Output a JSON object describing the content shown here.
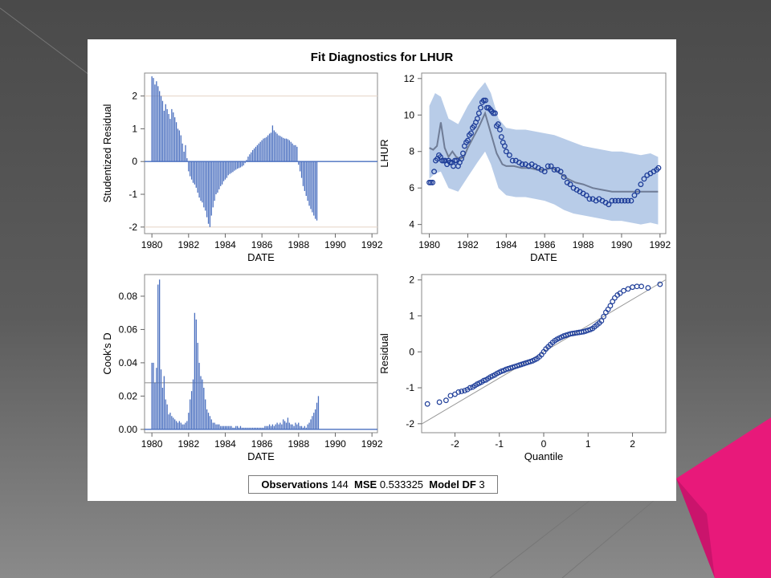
{
  "colors": {
    "bar": "#4a6fbf",
    "marker": "#1f3e99",
    "band": "#b8cce8",
    "predicted": "#6f7c96",
    "refline": "#e8d8cc",
    "slide_accent": "#e8197a"
  },
  "title": "Fit Diagnostics for LHUR",
  "footer": {
    "obs_label": "Observations",
    "obs_value": "144",
    "mse_label": "MSE",
    "mse_value": "0.533325",
    "df_label": "Model DF",
    "df_value": "3"
  },
  "chart_data": [
    {
      "id": "studentized-residual",
      "type": "bar",
      "xlabel": "DATE",
      "ylabel": "Studentized Residual",
      "xticks": [
        "1980",
        "1982",
        "1984",
        "1986",
        "1988",
        "1990",
        "1992"
      ],
      "yticks": [
        "-2",
        "-1",
        "0",
        "1",
        "2"
      ],
      "xlim": [
        1979.6,
        1992.3
      ],
      "ylim": [
        -2.2,
        2.7
      ],
      "reference_lines": [
        -2,
        2
      ],
      "x_start": 1980.0,
      "x_step": 0.0833,
      "values": [
        2.6,
        2.55,
        2.35,
        2.45,
        2.3,
        2.15,
        2.0,
        1.85,
        1.55,
        1.75,
        1.6,
        1.45,
        1.3,
        1.6,
        1.5,
        1.35,
        1.2,
        1.0,
        0.95,
        0.8,
        0.55,
        0.3,
        0.5,
        0.1,
        -0.3,
        -0.45,
        -0.55,
        -0.65,
        -0.7,
        -0.8,
        -0.95,
        -1.1,
        -1.2,
        -1.25,
        -1.4,
        -1.5,
        -1.7,
        -1.9,
        -2.0,
        -1.65,
        -1.4,
        -1.2,
        -1.0,
        -0.95,
        -0.85,
        -0.75,
        -0.7,
        -0.6,
        -0.55,
        -0.5,
        -0.42,
        -0.38,
        -0.35,
        -0.32,
        -0.28,
        -0.25,
        -0.22,
        -0.2,
        -0.18,
        -0.15,
        -0.12,
        -0.05,
        0.05,
        0.15,
        0.22,
        0.28,
        0.35,
        0.4,
        0.45,
        0.5,
        0.55,
        0.6,
        0.65,
        0.7,
        0.72,
        0.75,
        0.8,
        0.85,
        0.88,
        1.1,
        0.95,
        0.9,
        0.85,
        0.8,
        0.78,
        0.75,
        0.72,
        0.7,
        0.7,
        0.68,
        0.65,
        0.6,
        0.55,
        0.5,
        0.5,
        0.45,
        -0.1,
        -0.3,
        -0.5,
        -0.75,
        -0.9,
        -1.05,
        -1.2,
        -1.35,
        -1.45,
        -1.55,
        -1.65,
        -1.75,
        -1.8
      ]
    },
    {
      "id": "lhur-fit",
      "type": "line",
      "xlabel": "DATE",
      "ylabel": "LHUR",
      "xticks": [
        "1980",
        "1982",
        "1984",
        "1986",
        "1988",
        "1990",
        "1992"
      ],
      "yticks": [
        "4",
        "6",
        "8",
        "10",
        "12"
      ],
      "xlim": [
        1979.6,
        1992.3
      ],
      "ylim": [
        3.5,
        12.3
      ],
      "series": [
        {
          "role": "band_upper",
          "x": [
            1980.0,
            1980.3,
            1980.6,
            1981.0,
            1981.5,
            1982.0,
            1982.5,
            1982.9,
            1983.2,
            1983.6,
            1984.0,
            1984.5,
            1985.0,
            1985.5,
            1986.0,
            1986.5,
            1987.0,
            1987.5,
            1988.0,
            1988.5,
            1989.0,
            1989.5,
            1990.0,
            1990.5,
            1991.0,
            1991.5,
            1991.9
          ],
          "y": [
            10.5,
            11.2,
            11.0,
            9.8,
            9.5,
            10.5,
            11.3,
            11.8,
            11.2,
            9.8,
            9.3,
            9.2,
            9.2,
            9.1,
            9.0,
            8.9,
            8.7,
            8.5,
            8.3,
            8.2,
            8.1,
            8.0,
            8.0,
            7.9,
            7.8,
            7.9,
            7.7
          ]
        },
        {
          "role": "band_lower",
          "x": [
            1980.0,
            1980.3,
            1980.6,
            1981.0,
            1981.5,
            1982.0,
            1982.5,
            1982.9,
            1983.2,
            1983.6,
            1984.0,
            1984.5,
            1985.0,
            1985.5,
            1986.0,
            1986.5,
            1987.0,
            1987.5,
            1988.0,
            1988.5,
            1989.0,
            1989.5,
            1990.0,
            1990.5,
            1991.0,
            1991.5,
            1991.9
          ],
          "y": [
            6.5,
            6.8,
            6.9,
            6.0,
            5.8,
            6.6,
            7.4,
            8.0,
            7.3,
            6.0,
            5.6,
            5.5,
            5.5,
            5.4,
            5.3,
            5.1,
            4.8,
            4.6,
            4.5,
            4.4,
            4.3,
            4.2,
            4.2,
            4.1,
            4.0,
            4.1,
            4.0
          ]
        },
        {
          "role": "predicted",
          "x": [
            1980.0,
            1980.2,
            1980.4,
            1980.6,
            1980.8,
            1981.0,
            1981.2,
            1981.4,
            1981.6,
            1981.8,
            1982.0,
            1982.3,
            1982.6,
            1982.9,
            1983.2,
            1983.5,
            1983.8,
            1984.0,
            1984.4,
            1984.8,
            1985.2,
            1985.6,
            1986.0,
            1986.4,
            1986.8,
            1987.2,
            1987.6,
            1988.0,
            1988.5,
            1989.0,
            1989.5,
            1990.0,
            1990.5,
            1991.0,
            1991.5,
            1991.9
          ],
          "y": [
            8.2,
            8.1,
            8.3,
            9.6,
            8.2,
            7.7,
            8.0,
            7.7,
            7.6,
            7.7,
            8.2,
            8.8,
            9.4,
            10.1,
            9.0,
            7.9,
            7.3,
            7.2,
            7.2,
            7.1,
            7.1,
            7.0,
            7.0,
            7.1,
            6.8,
            6.5,
            6.3,
            6.2,
            6.0,
            5.9,
            5.8,
            5.8,
            5.8,
            5.8,
            5.8,
            5.8
          ]
        },
        {
          "role": "observed",
          "x": [
            1980.0,
            1980.08,
            1980.17,
            1980.25,
            1980.33,
            1980.42,
            1980.5,
            1980.58,
            1980.67,
            1980.75,
            1980.83,
            1980.92,
            1981.0,
            1981.08,
            1981.17,
            1981.25,
            1981.33,
            1981.42,
            1981.5,
            1981.58,
            1981.67,
            1981.75,
            1981.83,
            1981.92,
            1982.0,
            1982.08,
            1982.17,
            1982.25,
            1982.33,
            1982.42,
            1982.5,
            1982.58,
            1982.67,
            1982.75,
            1982.83,
            1982.92,
            1983.0,
            1983.08,
            1983.17,
            1983.25,
            1983.33,
            1983.42,
            1983.5,
            1983.58,
            1983.67,
            1983.75,
            1983.83,
            1983.92,
            1984.0,
            1984.17,
            1984.33,
            1984.5,
            1984.67,
            1984.83,
            1985.0,
            1985.17,
            1985.33,
            1985.5,
            1985.67,
            1985.83,
            1986.0,
            1986.17,
            1986.33,
            1986.5,
            1986.67,
            1986.83,
            1987.0,
            1987.17,
            1987.33,
            1987.5,
            1987.67,
            1987.83,
            1988.0,
            1988.17,
            1988.33,
            1988.5,
            1988.67,
            1988.83,
            1989.0,
            1989.17,
            1989.33,
            1989.5,
            1989.67,
            1989.83,
            1990.0,
            1990.17,
            1990.33,
            1990.5,
            1990.67,
            1990.83,
            1991.0,
            1991.17,
            1991.33,
            1991.5,
            1991.67,
            1991.83,
            1991.92
          ],
          "y": [
            6.3,
            6.3,
            6.3,
            6.9,
            7.5,
            7.6,
            7.8,
            7.7,
            7.5,
            7.5,
            7.5,
            7.3,
            7.5,
            7.4,
            7.4,
            7.2,
            7.5,
            7.5,
            7.2,
            7.4,
            7.6,
            7.9,
            8.3,
            8.5,
            8.6,
            8.9,
            9.0,
            9.3,
            9.4,
            9.6,
            9.8,
            10.1,
            10.4,
            10.7,
            10.8,
            10.8,
            10.4,
            10.4,
            10.3,
            10.2,
            10.1,
            10.1,
            9.4,
            9.5,
            9.2,
            8.8,
            8.5,
            8.3,
            8.0,
            7.8,
            7.5,
            7.5,
            7.4,
            7.3,
            7.3,
            7.2,
            7.3,
            7.2,
            7.1,
            7.0,
            6.9,
            7.2,
            7.2,
            7.0,
            7.0,
            6.9,
            6.6,
            6.3,
            6.2,
            6.0,
            5.9,
            5.8,
            5.7,
            5.6,
            5.4,
            5.4,
            5.3,
            5.4,
            5.3,
            5.2,
            5.1,
            5.3,
            5.3,
            5.3,
            5.3,
            5.3,
            5.3,
            5.3,
            5.6,
            5.8,
            6.2,
            6.5,
            6.7,
            6.8,
            6.9,
            7.0,
            7.1
          ]
        }
      ]
    },
    {
      "id": "cooks-d",
      "type": "bar",
      "xlabel": "DATE",
      "ylabel": "Cook's D",
      "xticks": [
        "1980",
        "1982",
        "1984",
        "1986",
        "1988",
        "1990",
        "1992"
      ],
      "yticks": [
        "0.00",
        "0.02",
        "0.04",
        "0.06",
        "0.08"
      ],
      "xlim": [
        1979.6,
        1992.3
      ],
      "ylim": [
        -0.002,
        0.093
      ],
      "reference_lines": [
        0.028
      ],
      "x_start": 1980.0,
      "x_step": 0.0833,
      "values": [
        0.04,
        0.04,
        0.028,
        0.037,
        0.087,
        0.09,
        0.036,
        0.025,
        0.032,
        0.018,
        0.015,
        0.009,
        0.01,
        0.008,
        0.007,
        0.006,
        0.005,
        0.004,
        0.005,
        0.004,
        0.003,
        0.003,
        0.004,
        0.005,
        0.01,
        0.018,
        0.023,
        0.03,
        0.07,
        0.066,
        0.052,
        0.04,
        0.032,
        0.03,
        0.025,
        0.018,
        0.012,
        0.01,
        0.008,
        0.006,
        0.004,
        0.004,
        0.003,
        0.003,
        0.003,
        0.002,
        0.002,
        0.002,
        0.002,
        0.002,
        0.002,
        0.002,
        0.002,
        0.001,
        0.001,
        0.002,
        0.002,
        0.001,
        0.002,
        0.001,
        0.001,
        0.001,
        0.001,
        0.001,
        0.001,
        0.001,
        0.001,
        0.001,
        0.001,
        0.001,
        0.001,
        0.001,
        0.001,
        0.001,
        0.002,
        0.002,
        0.002,
        0.003,
        0.002,
        0.003,
        0.002,
        0.003,
        0.004,
        0.003,
        0.004,
        0.003,
        0.006,
        0.005,
        0.004,
        0.007,
        0.004,
        0.003,
        0.003,
        0.002,
        0.004,
        0.003,
        0.004,
        0.002,
        0.002,
        0.001,
        0.002,
        0.001,
        0.003,
        0.004,
        0.006,
        0.008,
        0.01,
        0.012,
        0.016,
        0.02
      ]
    },
    {
      "id": "residual-qq",
      "type": "scatter",
      "xlabel": "Quantile",
      "ylabel": "Residual",
      "xticks": [
        "-2",
        "-1",
        "0",
        "1",
        "2"
      ],
      "yticks": [
        "-2",
        "-1",
        "0",
        "1",
        "2"
      ],
      "xlim": [
        -2.75,
        2.75
      ],
      "ylim": [
        -2.25,
        2.15
      ],
      "reference_line": {
        "slope": 0.73,
        "intercept": 0.0
      },
      "x": [
        -2.62,
        -2.35,
        -2.2,
        -2.1,
        -2.0,
        -1.92,
        -1.85,
        -1.78,
        -1.72,
        -1.66,
        -1.6,
        -1.55,
        -1.5,
        -1.45,
        -1.4,
        -1.35,
        -1.3,
        -1.25,
        -1.2,
        -1.15,
        -1.1,
        -1.05,
        -1.0,
        -0.95,
        -0.9,
        -0.85,
        -0.8,
        -0.75,
        -0.7,
        -0.65,
        -0.6,
        -0.55,
        -0.5,
        -0.45,
        -0.4,
        -0.35,
        -0.3,
        -0.25,
        -0.2,
        -0.15,
        -0.1,
        -0.05,
        0.0,
        0.05,
        0.1,
        0.15,
        0.2,
        0.25,
        0.3,
        0.35,
        0.4,
        0.45,
        0.5,
        0.55,
        0.6,
        0.65,
        0.7,
        0.75,
        0.8,
        0.85,
        0.9,
        0.95,
        1.0,
        1.05,
        1.1,
        1.15,
        1.2,
        1.25,
        1.3,
        1.35,
        1.4,
        1.45,
        1.5,
        1.55,
        1.6,
        1.66,
        1.72,
        1.8,
        1.9,
        2.0,
        2.1,
        2.2,
        2.35,
        2.62
      ],
      "y": [
        -1.45,
        -1.4,
        -1.35,
        -1.22,
        -1.18,
        -1.12,
        -1.1,
        -1.08,
        -1.05,
        -1.0,
        -0.98,
        -0.94,
        -0.9,
        -0.87,
        -0.84,
        -0.8,
        -0.78,
        -0.74,
        -0.7,
        -0.67,
        -0.64,
        -0.6,
        -0.57,
        -0.54,
        -0.52,
        -0.49,
        -0.47,
        -0.45,
        -0.43,
        -0.41,
        -0.39,
        -0.37,
        -0.35,
        -0.33,
        -0.31,
        -0.29,
        -0.27,
        -0.25,
        -0.22,
        -0.19,
        -0.14,
        -0.08,
        0.0,
        0.08,
        0.14,
        0.2,
        0.26,
        0.31,
        0.35,
        0.38,
        0.41,
        0.44,
        0.46,
        0.48,
        0.5,
        0.51,
        0.52,
        0.53,
        0.54,
        0.55,
        0.56,
        0.58,
        0.6,
        0.62,
        0.65,
        0.7,
        0.75,
        0.8,
        0.86,
        0.98,
        1.1,
        1.18,
        1.28,
        1.4,
        1.5,
        1.58,
        1.63,
        1.7,
        1.75,
        1.8,
        1.82,
        1.82,
        1.78,
        1.88
      ]
    }
  ]
}
